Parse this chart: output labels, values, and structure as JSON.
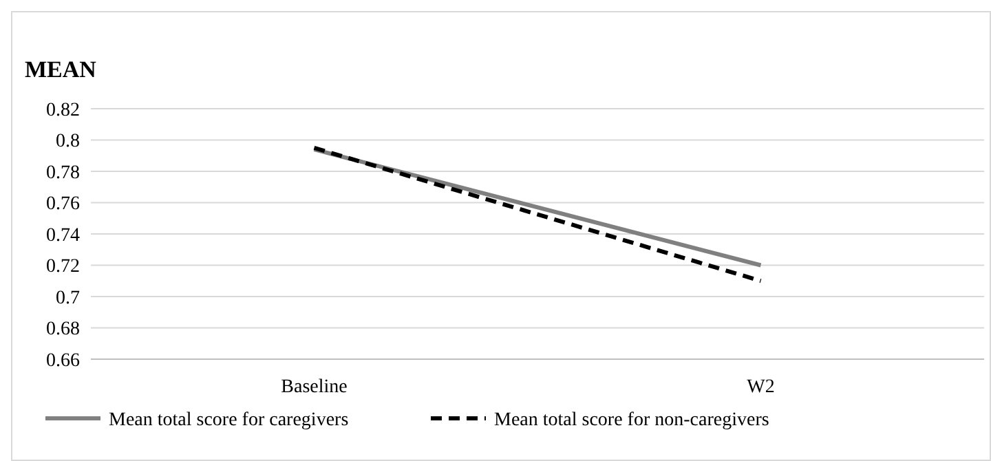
{
  "chart_data": {
    "type": "line",
    "title": "MEAN",
    "categories": [
      "Baseline",
      "W2"
    ],
    "series": [
      {
        "name": "Mean total score for caregivers",
        "color": "#808080",
        "values": [
          0.794,
          0.72
        ],
        "line_style": "solid"
      },
      {
        "name": "Mean total score for non-caregivers",
        "color": "#000000",
        "values": [
          0.795,
          0.71
        ],
        "line_style": "dashed"
      }
    ],
    "ylim": [
      0.66,
      0.82
    ],
    "yticks": [
      0.66,
      0.68,
      0.7,
      0.72,
      0.74,
      0.76,
      0.78,
      0.8,
      0.82
    ],
    "grid": "y",
    "legend": "bottom"
  }
}
